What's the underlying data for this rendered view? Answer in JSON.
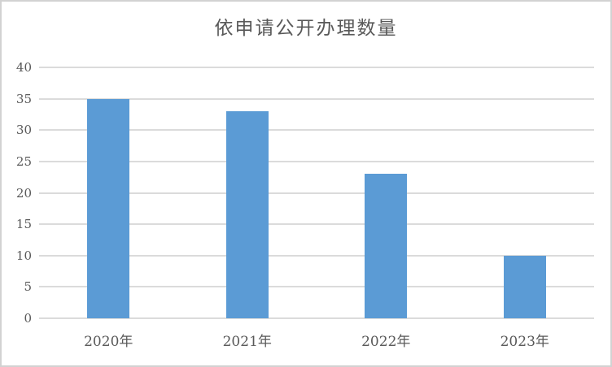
{
  "chart": {
    "colors": {
      "bar": "#5B9BD5",
      "gridline": "#DBDBDB",
      "frame_border": "#D2D2D2",
      "tick_text": "#595959",
      "title_text": "#595959",
      "background": "#FFFFFF"
    }
  },
  "chart_data": {
    "type": "bar",
    "title": "依申请公开办理数量",
    "categories": [
      "2020年",
      "2021年",
      "2022年",
      "2023年"
    ],
    "values": [
      35,
      33,
      23,
      10
    ],
    "xlabel": "",
    "ylabel": "",
    "ylim": [
      0,
      40
    ],
    "yticks": [
      0,
      5,
      10,
      15,
      20,
      25,
      30,
      35,
      40
    ],
    "grid": true,
    "legend": "none",
    "bar_color": "#5B9BD5"
  }
}
